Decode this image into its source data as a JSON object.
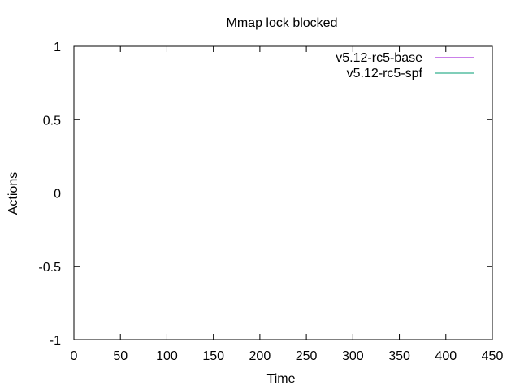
{
  "chart_data": {
    "type": "line",
    "title": "Mmap lock blocked",
    "xlabel": "Time",
    "ylabel": "Actions",
    "xlim": [
      0,
      450
    ],
    "ylim": [
      -1,
      1
    ],
    "xticks": [
      "0",
      "50",
      "100",
      "150",
      "200",
      "250",
      "300",
      "350",
      "400",
      "450"
    ],
    "xtick_values": [
      0,
      50,
      100,
      150,
      200,
      250,
      300,
      350,
      400,
      450
    ],
    "yticks": [
      "1",
      "0.5",
      "0",
      "-0.5",
      "-1"
    ],
    "ytick_values": [
      1,
      0.5,
      0,
      -0.5,
      -1
    ],
    "grid": false,
    "legend_position": "top-right",
    "series": [
      {
        "name": "v5.12-rc5-base",
        "color": "#9400d3",
        "x": [
          0,
          420
        ],
        "y": [
          0,
          0
        ]
      },
      {
        "name": "v5.12-rc5-spf",
        "color": "#009e73",
        "x": [
          0,
          420
        ],
        "y": [
          0,
          0
        ]
      }
    ]
  }
}
